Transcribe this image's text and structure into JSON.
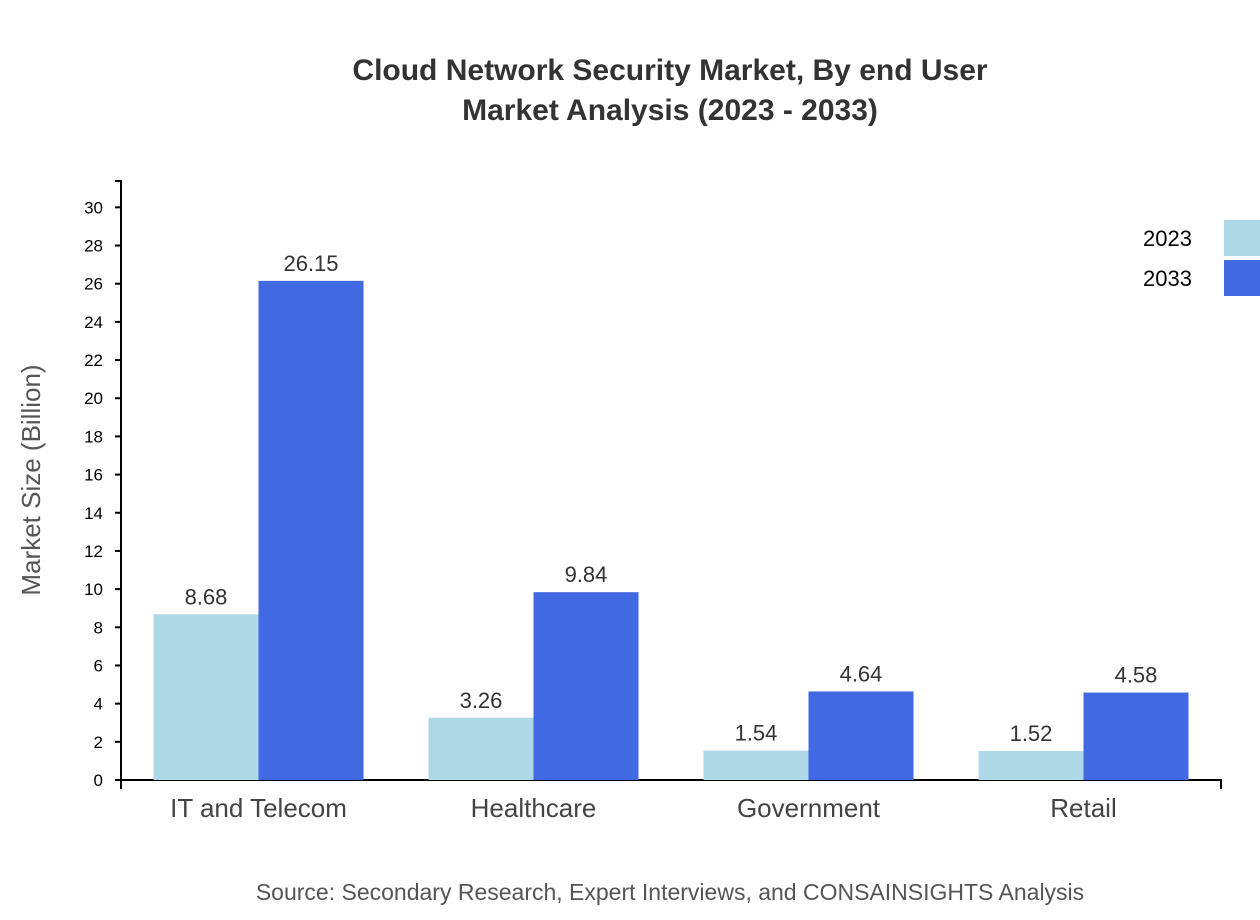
{
  "chart_data": {
    "type": "bar",
    "title": "Cloud Network Security Market, By end User",
    "subtitle": "Market Analysis (2023 - 2033)",
    "ylabel": "Market Size (Billion)",
    "xlabel": "",
    "categories": [
      "IT and Telecom",
      "Healthcare",
      "Government",
      "Retail"
    ],
    "series": [
      {
        "name": "2023",
        "color": "#ADD8E6",
        "values": [
          8.68,
          3.26,
          1.54,
          1.52
        ]
      },
      {
        "name": "2033",
        "color": "#4169E1",
        "values": [
          26.15,
          9.84,
          4.64,
          4.58
        ]
      }
    ],
    "ylim": [
      0,
      31.38
    ],
    "yticks": [
      0,
      2,
      4,
      6,
      8,
      10,
      12,
      14,
      16,
      18,
      20,
      22,
      24,
      26,
      28,
      30
    ],
    "grid": false,
    "legend": "top-right",
    "source": "Source: Secondary Research, Expert Interviews, and CONSAINSIGHTS Analysis"
  }
}
